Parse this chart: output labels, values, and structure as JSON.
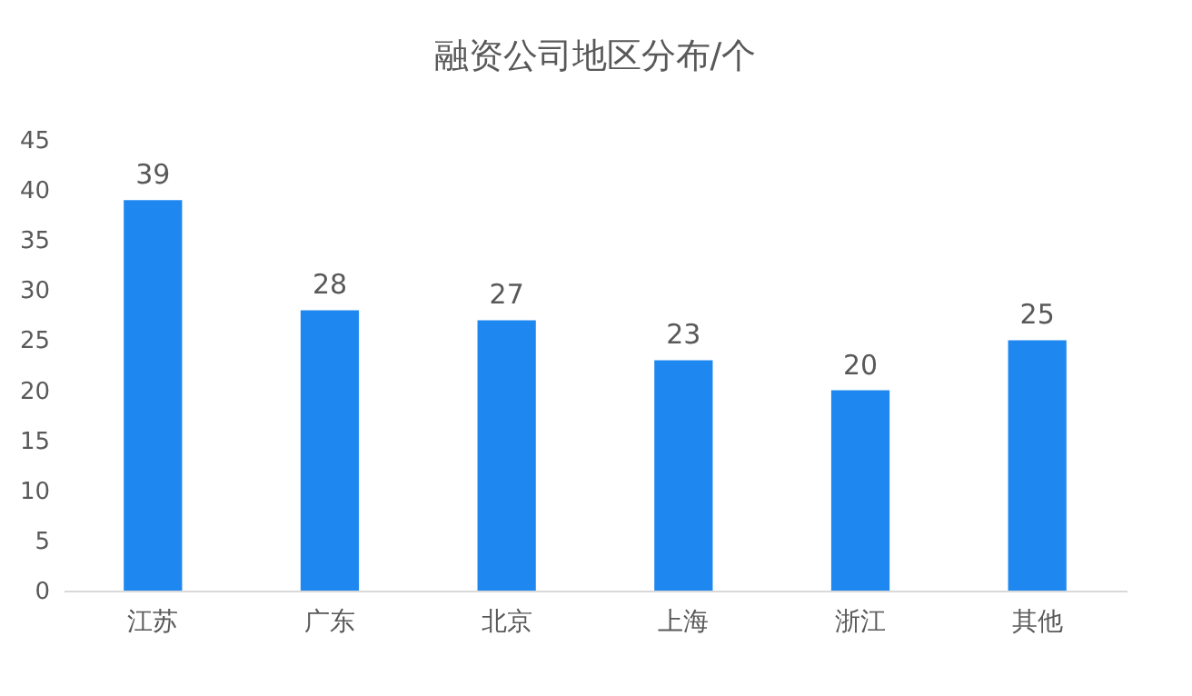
{
  "chart_data": {
    "type": "bar",
    "title": "融资公司地区分布/个",
    "categories": [
      "江苏",
      "广东",
      "北京",
      "上海",
      "浙江",
      "其他"
    ],
    "values": [
      39,
      28,
      27,
      23,
      20,
      25
    ],
    "color": "#1e88f0",
    "ylim": [
      0,
      45
    ],
    "yticks": [
      0,
      5,
      10,
      15,
      20,
      25,
      30,
      35,
      40,
      45
    ],
    "grid": false,
    "data_labels": true
  }
}
